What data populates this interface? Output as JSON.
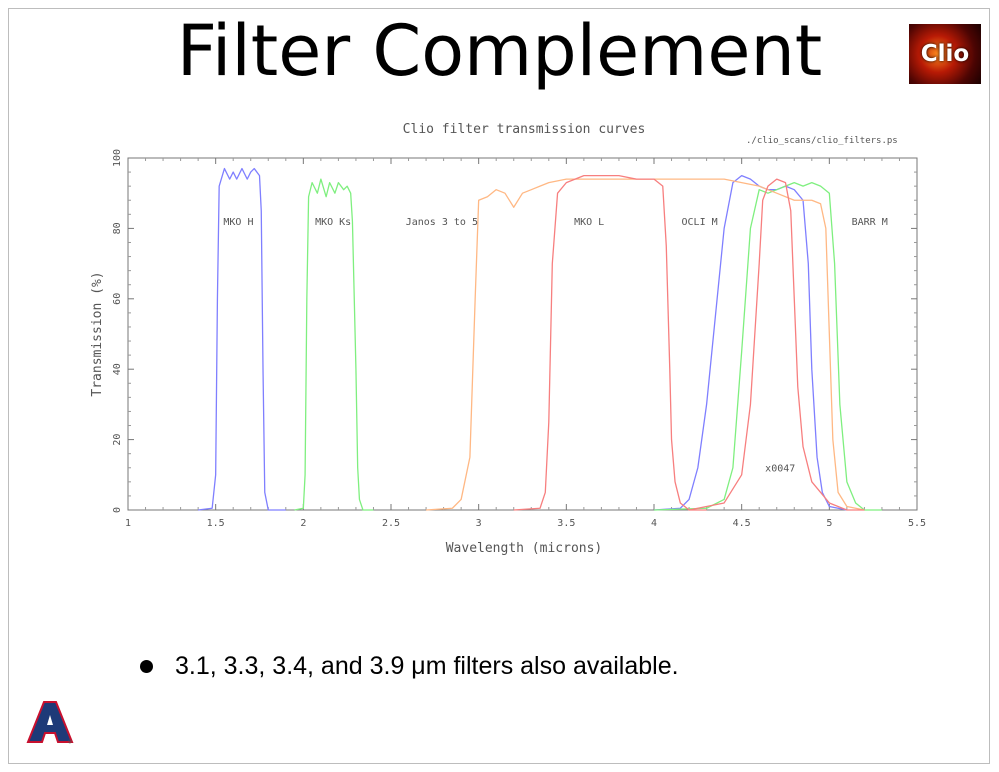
{
  "slide": {
    "title": "Filter Complement",
    "logo_text": "Clio",
    "bullet": "3.1, 3.3, 3.4, and 3.9 μm filters also available.",
    "university_logo_text": "A"
  },
  "colors": {
    "blue": "#7f7fff",
    "green": "#7fef7f",
    "orange": "#ffb884",
    "red": "#f77f7f",
    "axis": "#555555"
  },
  "chart_data": {
    "type": "line",
    "title": "Clio filter transmission curves",
    "subtitle": "./clio_scans/clio_filters.ps",
    "xlabel": "Wavelength (microns)",
    "ylabel": "Transmission (%)",
    "xlim": [
      1,
      5.5
    ],
    "ylim": [
      0,
      100
    ],
    "xticks": [
      1,
      1.5,
      2,
      2.5,
      3,
      3.5,
      4,
      4.5,
      5,
      5.5
    ],
    "yticks": [
      0,
      20,
      40,
      60,
      80,
      100
    ],
    "xtick_labels": [
      "1",
      "1.5",
      "2",
      "2.5",
      "3",
      "3.5",
      "4",
      "4.5",
      "5",
      "5.5"
    ],
    "ytick_labels": [
      "0",
      "20",
      "40",
      "60",
      "80",
      "100"
    ],
    "grid": false,
    "series_labels": [
      {
        "text": "MKO H",
        "x": 1.63,
        "y": 81
      },
      {
        "text": "MKO Ks",
        "x": 2.17,
        "y": 81
      },
      {
        "text": "Janos 3 to 5",
        "x": 2.79,
        "y": 81
      },
      {
        "text": "MKO L",
        "x": 3.63,
        "y": 81
      },
      {
        "text": "OCLI M",
        "x": 4.26,
        "y": 81
      },
      {
        "text": "BARR M",
        "x": 5.23,
        "y": 81
      },
      {
        "text": "x0047",
        "x": 4.72,
        "y": 11
      }
    ],
    "series": [
      {
        "color_key": "blue",
        "x": [
          1.4,
          1.48,
          1.5,
          1.51,
          1.52,
          1.55,
          1.58,
          1.6,
          1.62,
          1.65,
          1.68,
          1.7,
          1.72,
          1.75,
          1.76,
          1.77,
          1.78,
          1.8,
          1.9
        ],
        "y": [
          0,
          0.5,
          10,
          60,
          92,
          97,
          94,
          96,
          94,
          97,
          94,
          96,
          97,
          95,
          85,
          40,
          5,
          0,
          0
        ]
      },
      {
        "color_key": "green",
        "x": [
          1.95,
          2.0,
          2.01,
          2.02,
          2.03,
          2.05,
          2.08,
          2.1,
          2.13,
          2.15,
          2.18,
          2.2,
          2.23,
          2.25,
          2.27,
          2.28,
          2.3,
          2.31,
          2.32,
          2.34,
          2.4
        ],
        "y": [
          0,
          0.5,
          10,
          60,
          89,
          93,
          90,
          94,
          89,
          93,
          90,
          93,
          91,
          92,
          90,
          82,
          40,
          12,
          3,
          0,
          0
        ]
      },
      {
        "color_key": "blue",
        "x": [
          4.0,
          4.15,
          4.2,
          4.25,
          4.3,
          4.35,
          4.4,
          4.45,
          4.5,
          4.55,
          4.6,
          4.65,
          4.7,
          4.75,
          4.8,
          4.85,
          4.88,
          4.9,
          4.93,
          4.96,
          5.0,
          5.1
        ],
        "y": [
          0,
          0.5,
          3,
          12,
          30,
          55,
          80,
          93,
          95,
          94,
          92,
          91,
          91,
          92,
          91,
          88,
          70,
          40,
          15,
          5,
          1,
          0
        ]
      },
      {
        "color_key": "green",
        "x": [
          4.0,
          4.3,
          4.4,
          4.45,
          4.5,
          4.55,
          4.6,
          4.65,
          4.7,
          4.75,
          4.8,
          4.85,
          4.9,
          4.95,
          5.0,
          5.03,
          5.06,
          5.1,
          5.15,
          5.2,
          5.3
        ],
        "y": [
          0,
          0.5,
          3,
          12,
          45,
          80,
          91,
          90,
          91,
          92,
          93,
          92,
          93,
          92,
          90,
          70,
          30,
          8,
          2,
          0,
          0
        ]
      },
      {
        "color_key": "orange",
        "x": [
          2.7,
          2.85,
          2.9,
          2.95,
          2.98,
          3.0,
          3.05,
          3.1,
          3.15,
          3.2,
          3.25,
          3.3,
          3.35,
          3.4,
          3.5,
          3.6,
          3.8,
          4.0,
          4.2,
          4.4,
          4.6,
          4.7,
          4.8,
          4.9,
          4.95,
          4.98,
          5.0,
          5.02,
          5.05,
          5.1,
          5.2
        ],
        "y": [
          0,
          0.5,
          3,
          15,
          60,
          88,
          89,
          91,
          90,
          86,
          90,
          91,
          92,
          93,
          94,
          94,
          94,
          94,
          94,
          94,
          92,
          90,
          88,
          88,
          87,
          80,
          50,
          20,
          5,
          1,
          0
        ]
      },
      {
        "color_key": "red",
        "x": [
          3.2,
          3.35,
          3.38,
          3.4,
          3.42,
          3.45,
          3.5,
          3.6,
          3.7,
          3.8,
          3.9,
          4.0,
          4.05,
          4.07,
          4.09,
          4.1,
          4.12,
          4.15,
          4.2,
          4.3
        ],
        "y": [
          0,
          0.5,
          5,
          25,
          70,
          90,
          93,
          95,
          95,
          95,
          94,
          94,
          92,
          75,
          40,
          20,
          8,
          2,
          0,
          0
        ]
      },
      {
        "color_key": "red",
        "x": [
          4.2,
          4.4,
          4.5,
          4.55,
          4.6,
          4.62,
          4.65,
          4.7,
          4.75,
          4.78,
          4.8,
          4.82,
          4.85,
          4.9,
          5.0,
          5.1,
          5.2
        ],
        "y": [
          0,
          2,
          10,
          30,
          70,
          88,
          92,
          94,
          93,
          85,
          60,
          35,
          18,
          8,
          2,
          0,
          0
        ]
      }
    ]
  }
}
